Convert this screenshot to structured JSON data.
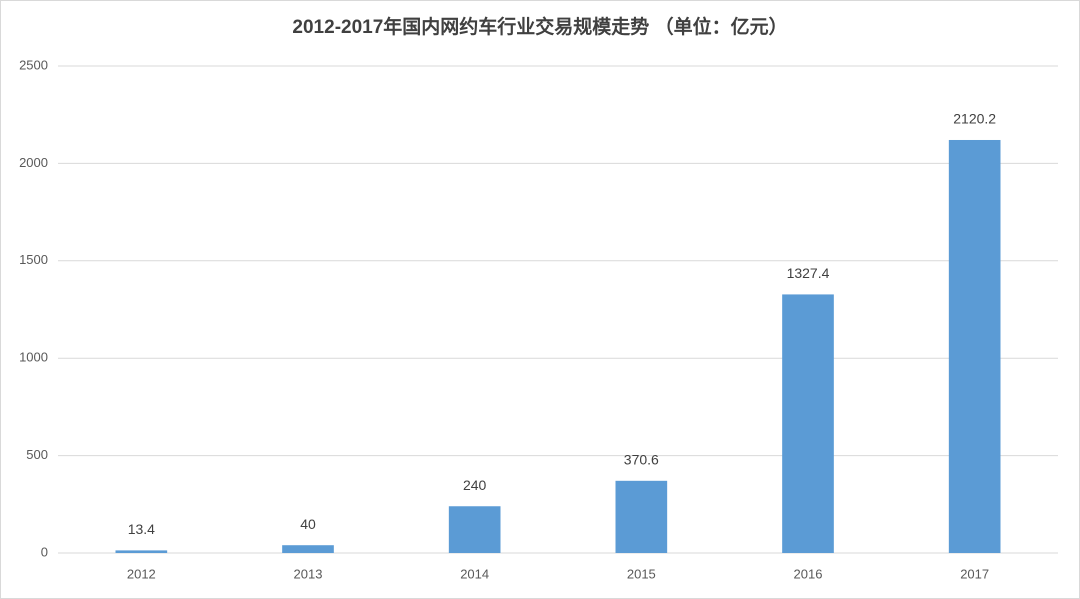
{
  "chart_data": {
    "type": "bar",
    "title": "2012-2017年国内网约车行业交易规模走势 （单位：亿元）",
    "categories": [
      "2012",
      "2013",
      "2014",
      "2015",
      "2016",
      "2017"
    ],
    "values": [
      13.4,
      40,
      240,
      370.6,
      1327.4,
      2120.2
    ],
    "color": "#5b9bd5",
    "ylim": [
      0,
      2500
    ],
    "yticks": [
      0,
      500,
      1000,
      1500,
      2000,
      2500
    ],
    "grid": true
  }
}
